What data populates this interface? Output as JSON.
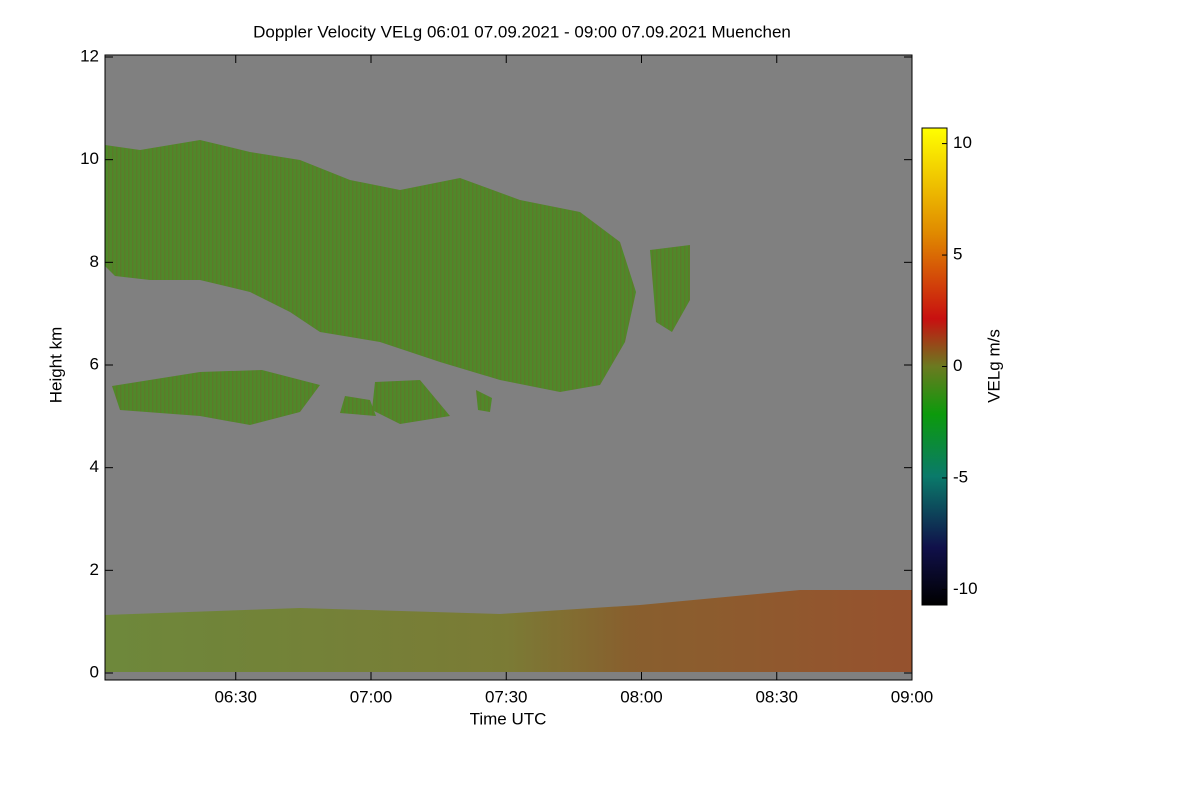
{
  "chart_data": {
    "type": "heatmap",
    "title": "Doppler Velocity VELg   06:01 07.09.2021 - 09:00 07.09.2021 Muenchen",
    "xlabel": "Time UTC",
    "ylabel": "Height km",
    "xlim": [
      "06:01",
      "09:00"
    ],
    "xticks": [
      "06:30",
      "07:00",
      "07:30",
      "08:00",
      "08:30",
      "09:00"
    ],
    "ylim": [
      0,
      12
    ],
    "yticks": [
      0,
      2,
      4,
      6,
      8,
      10,
      12
    ],
    "colorbar": {
      "label": "VELg m/s",
      "lim": [
        -10.7,
        10.7
      ],
      "ticks": [
        10,
        5,
        0,
        -5,
        -10
      ]
    }
  }
}
